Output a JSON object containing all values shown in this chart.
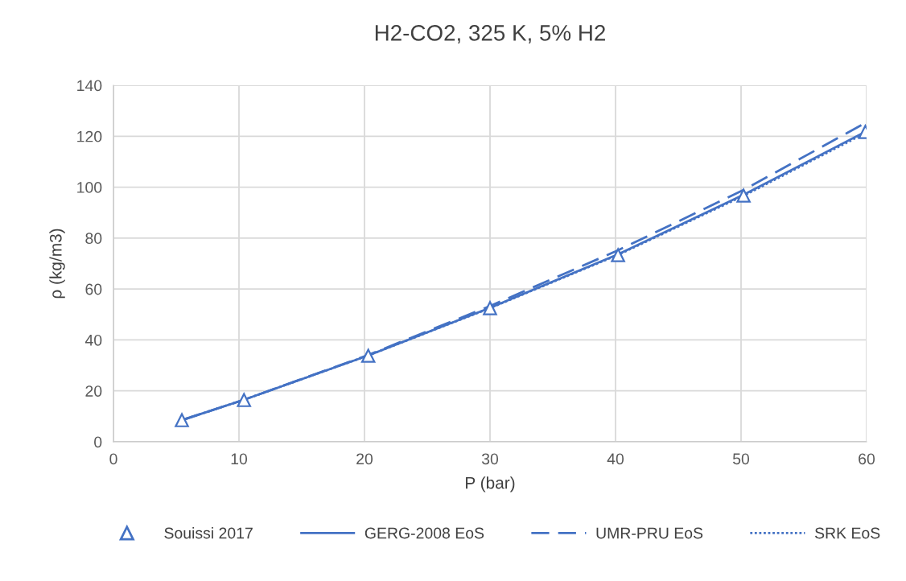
{
  "chart_data": {
    "type": "line",
    "title": "H2-CO2, 325 K, 5% H2",
    "xlabel": "P (bar)",
    "ylabel": "ρ (kg/m3)",
    "xlim": [
      0,
      60
    ],
    "xticks": [
      0,
      10,
      20,
      30,
      40,
      50,
      60
    ],
    "ylim": [
      0,
      140
    ],
    "yticks": [
      0,
      20,
      40,
      60,
      80,
      100,
      120,
      140
    ],
    "grid": true,
    "legend": "bottom",
    "series": [
      {
        "name": "Souissi 2017",
        "type": "scatter",
        "marker": "triangle",
        "color": "#4472c4",
        "x": [
          5.45,
          10.4,
          20.3,
          30.0,
          40.2,
          50.2,
          59.9
        ],
        "values": [
          8.5,
          16.4,
          33.8,
          52.5,
          73.3,
          96.7,
          121.7
        ]
      },
      {
        "name": "GERG-2008 EoS",
        "line_style": "solid",
        "color": "#4472c4",
        "x": [
          5.45,
          10.4,
          20.3,
          30.0,
          40.2,
          50.2,
          60
        ],
        "values": [
          8.5,
          16.5,
          33.9,
          52.6,
          73.6,
          97.0,
          122.0
        ]
      },
      {
        "name": "UMR-PRU EoS",
        "line_style": "dashed",
        "color": "#4472c4",
        "x": [
          5.45,
          10.4,
          20.3,
          30.0,
          40.2,
          50.2,
          60
        ],
        "values": [
          8.5,
          16.5,
          34.1,
          53.3,
          75.2,
          98.9,
          125.5
        ]
      },
      {
        "name": "SRK EoS",
        "line_style": "dotted",
        "color": "#4472c4",
        "x": [
          5.45,
          10.4,
          20.3,
          30.0,
          40.2,
          50.2,
          60
        ],
        "values": [
          8.5,
          16.5,
          33.9,
          52.5,
          73.4,
          96.6,
          121.5
        ]
      }
    ]
  }
}
